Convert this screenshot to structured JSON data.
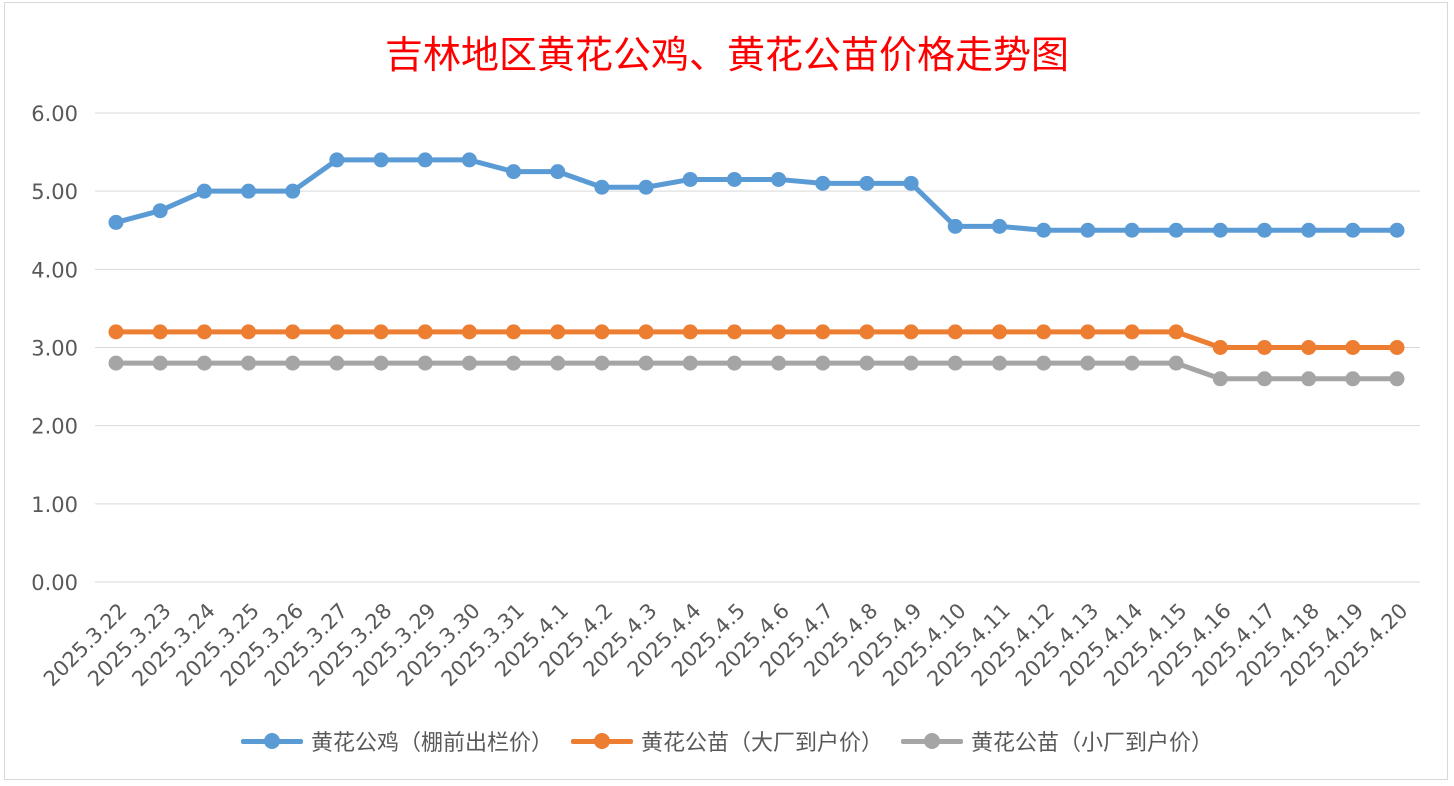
{
  "chart_data": {
    "type": "line",
    "title": "吉林地区黄花公鸡、黄花公苗价格走势图",
    "categories": [
      "2025.3.22",
      "2025.3.23",
      "2025.3.24",
      "2025.3.25",
      "2025.3.26",
      "2025.3.27",
      "2025.3.28",
      "2025.3.29",
      "2025.3.30",
      "2025.3.31",
      "2025.4.1",
      "2025.4.2",
      "2025.4.3",
      "2025.4.4",
      "2025.4.5",
      "2025.4.6",
      "2025.4.7",
      "2025.4.8",
      "2025.4.9",
      "2025.4.10",
      "2025.4.11",
      "2025.4.12",
      "2025.4.13",
      "2025.4.14",
      "2025.4.15",
      "2025.4.16",
      "2025.4.17",
      "2025.4.18",
      "2025.4.19",
      "2025.4.20"
    ],
    "series": [
      {
        "name": "黄花公鸡（棚前出栏价）",
        "color": "#5b9bd5",
        "values": [
          4.6,
          4.75,
          5.0,
          5.0,
          5.0,
          5.4,
          5.4,
          5.4,
          5.4,
          5.25,
          5.25,
          5.05,
          5.05,
          5.15,
          5.15,
          5.15,
          5.1,
          5.1,
          5.1,
          4.55,
          4.55,
          4.5,
          4.5,
          4.5,
          4.5,
          4.5,
          4.5,
          4.5,
          4.5,
          4.5
        ]
      },
      {
        "name": "黄花公苗（大厂到户价）",
        "color": "#ed7d31",
        "values": [
          3.2,
          3.2,
          3.2,
          3.2,
          3.2,
          3.2,
          3.2,
          3.2,
          3.2,
          3.2,
          3.2,
          3.2,
          3.2,
          3.2,
          3.2,
          3.2,
          3.2,
          3.2,
          3.2,
          3.2,
          3.2,
          3.2,
          3.2,
          3.2,
          3.2,
          3.0,
          3.0,
          3.0,
          3.0,
          3.0
        ]
      },
      {
        "name": "黄花公苗（小厂到户价）",
        "color": "#a5a5a5",
        "values": [
          2.8,
          2.8,
          2.8,
          2.8,
          2.8,
          2.8,
          2.8,
          2.8,
          2.8,
          2.8,
          2.8,
          2.8,
          2.8,
          2.8,
          2.8,
          2.8,
          2.8,
          2.8,
          2.8,
          2.8,
          2.8,
          2.8,
          2.8,
          2.8,
          2.8,
          2.6,
          2.6,
          2.6,
          2.6,
          2.6
        ]
      }
    ],
    "y_ticks": [
      "0.00",
      "1.00",
      "2.00",
      "3.00",
      "4.00",
      "5.00",
      "6.00"
    ],
    "ylim": [
      0,
      6
    ],
    "grid": true,
    "legend_position": "bottom",
    "title_color": "#ff0000"
  }
}
